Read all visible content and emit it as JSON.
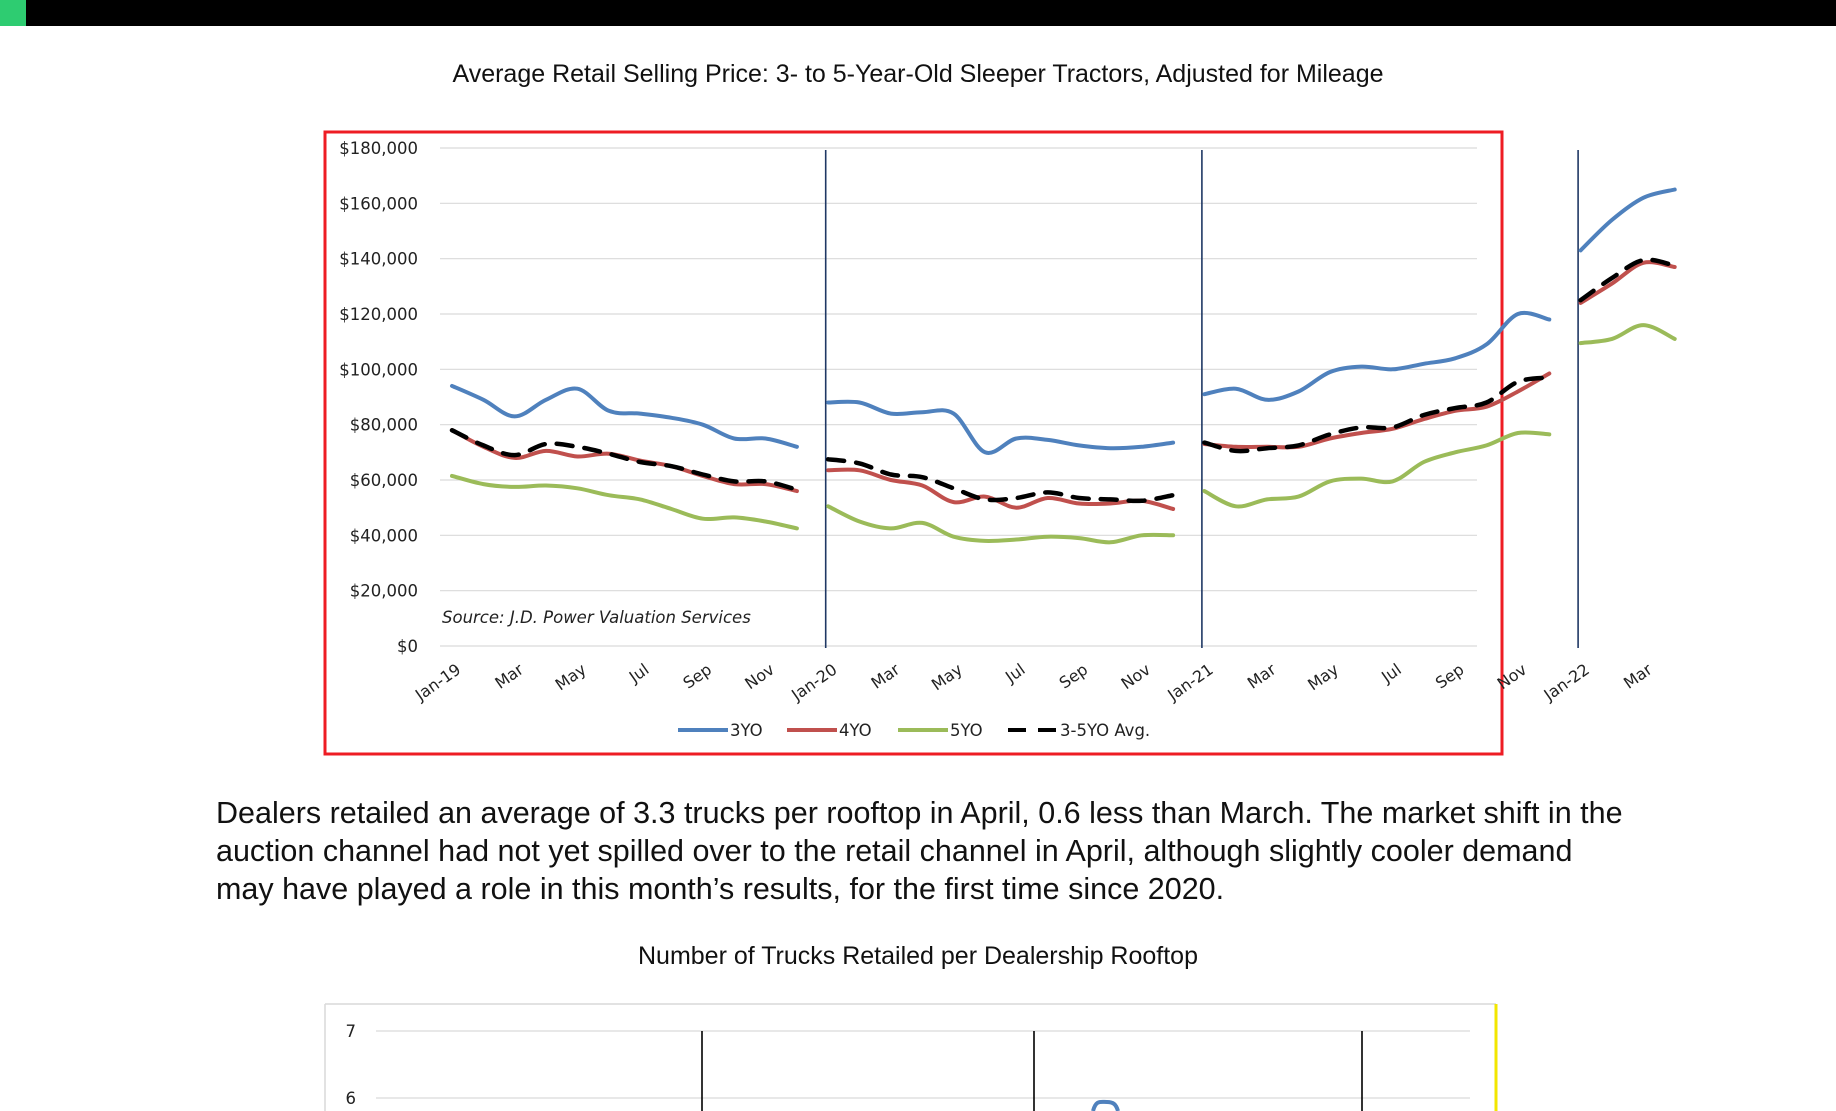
{
  "brand": {
    "accent_color": "#2ecc71"
  },
  "chart1_title": "Average Retail Selling Price: 3- to 5-Year-Old Sleeper Tractors, Adjusted for Mileage",
  "paragraph": "Dealers retailed an average of 3.3 trucks per rooftop in April, 0.6 less than March. The market shift in the auction channel had not yet spilled over to the retail channel in April, although slightly cooler demand may have played a role in this month’s results, for the first time since 2020.",
  "chart2_title": "Number of Trucks Retailed per Dealership Rooftop",
  "chart_data": [
    {
      "type": "line",
      "title": "Average Retail Selling Price: 3- to 5-Year-Old Sleeper Tractors, Adjusted for Mileage",
      "source_note": "Source: J.D. Power Valuation Services",
      "x": [
        "Jan-19",
        "Feb-19",
        "Mar-19",
        "Apr-19",
        "May-19",
        "Jun-19",
        "Jul-19",
        "Aug-19",
        "Sep-19",
        "Oct-19",
        "Nov-19",
        "Dec-19",
        "Jan-20",
        "Feb-20",
        "Mar-20",
        "Apr-20",
        "May-20",
        "Jun-20",
        "Jul-20",
        "Aug-20",
        "Sep-20",
        "Oct-20",
        "Nov-20",
        "Dec-20",
        "Jan-21",
        "Feb-21",
        "Mar-21",
        "Apr-21",
        "May-21",
        "Jun-21",
        "Jul-21",
        "Aug-21",
        "Sep-21",
        "Oct-21",
        "Nov-21",
        "Dec-21",
        "Jan-22",
        "Feb-22",
        "Mar-22",
        "Apr-22"
      ],
      "xtick_labels": [
        "Jan-19",
        "Mar",
        "May",
        "Jul",
        "Sep",
        "Nov",
        "Jan-20",
        "Mar",
        "May",
        "Jul",
        "Sep",
        "Nov",
        "Jan-21",
        "Mar",
        "May",
        "Jul",
        "Sep",
        "Nov",
        "Jan-22",
        "Mar"
      ],
      "year_dividers": [
        "Jan-20",
        "Jan-21",
        "Jan-22"
      ],
      "yticks": [
        "$0",
        "$20,000",
        "$40,000",
        "$60,000",
        "$80,000",
        "$100,000",
        "$120,000",
        "$140,000",
        "$160,000",
        "$180,000"
      ],
      "ylim": [
        0,
        180000
      ],
      "grid": true,
      "legend_position": "bottom",
      "frame_color": "#ee1c24",
      "series": [
        {
          "name": "3YO",
          "color": "#4f81bd",
          "dashed": false,
          "segments": [
            [
              94000,
              89000,
              83000,
              89000,
              93000,
              85000,
              84000,
              82500,
              80000,
              75000,
              75000,
              72000
            ],
            [
              88000,
              88000,
              84000,
              84500,
              84000,
              70000,
              75000,
              74500,
              72500,
              71500,
              72000,
              73500
            ],
            [
              91000,
              93000,
              89000,
              92000,
              99000,
              101000,
              100000,
              102000,
              104000,
              109000,
              120000,
              118000
            ],
            [
              143000,
              154000,
              162000,
              165000
            ]
          ]
        },
        {
          "name": "4YO",
          "color": "#c0504d",
          "dashed": false,
          "segments": [
            [
              78000,
              72000,
              68000,
              70500,
              68500,
              69500,
              67000,
              65000,
              61500,
              58500,
              58500,
              56000
            ],
            [
              63500,
              63500,
              60000,
              58000,
              52000,
              54000,
              50000,
              53500,
              51500,
              51500,
              52500,
              49500
            ],
            [
              73000,
              72000,
              72000,
              72000,
              75000,
              77000,
              78500,
              82000,
              85000,
              86500,
              92000,
              98500
            ],
            [
              124000,
              131000,
              138500,
              137000
            ]
          ]
        },
        {
          "name": "5YO",
          "color": "#9bbb59",
          "dashed": false,
          "segments": [
            [
              61500,
              58500,
              57500,
              58000,
              57000,
              54500,
              53000,
              49500,
              46000,
              46500,
              45000,
              42500
            ],
            [
              50500,
              45000,
              42500,
              44500,
              39500,
              38000,
              38500,
              39500,
              39000,
              37500,
              40000,
              40000
            ],
            [
              56000,
              50500,
              53000,
              54000,
              59500,
              60500,
              59500,
              66500,
              70000,
              72500,
              77000,
              76500
            ],
            [
              109500,
              111000,
              116000,
              111000
            ]
          ]
        },
        {
          "name": "3-5YO Avg.",
          "color": "#000000",
          "dashed": true,
          "segments": [
            [
              78000,
              72500,
              69000,
              73000,
              72000,
              69500,
              66500,
              65000,
              62000,
              59500,
              59500,
              56500
            ],
            [
              67500,
              66000,
              62000,
              61000,
              57000,
              53000,
              53500,
              55500,
              53500,
              53000,
              52500,
              54500
            ],
            [
              73500,
              70500,
              71500,
              72500,
              76500,
              79000,
              79000,
              83500,
              86000,
              88000,
              95500,
              97000
            ],
            [
              125000,
              133000,
              139500,
              137500
            ]
          ]
        }
      ]
    },
    {
      "type": "line",
      "title": "Number of Trucks Retailed per Dealership Rooftop",
      "yticks": [
        "6",
        "7"
      ],
      "ylim": [
        6,
        7
      ],
      "grid": true,
      "series": [
        {
          "name": "",
          "color": "#4f81bd",
          "values": [
            6.0
          ]
        }
      ]
    }
  ]
}
